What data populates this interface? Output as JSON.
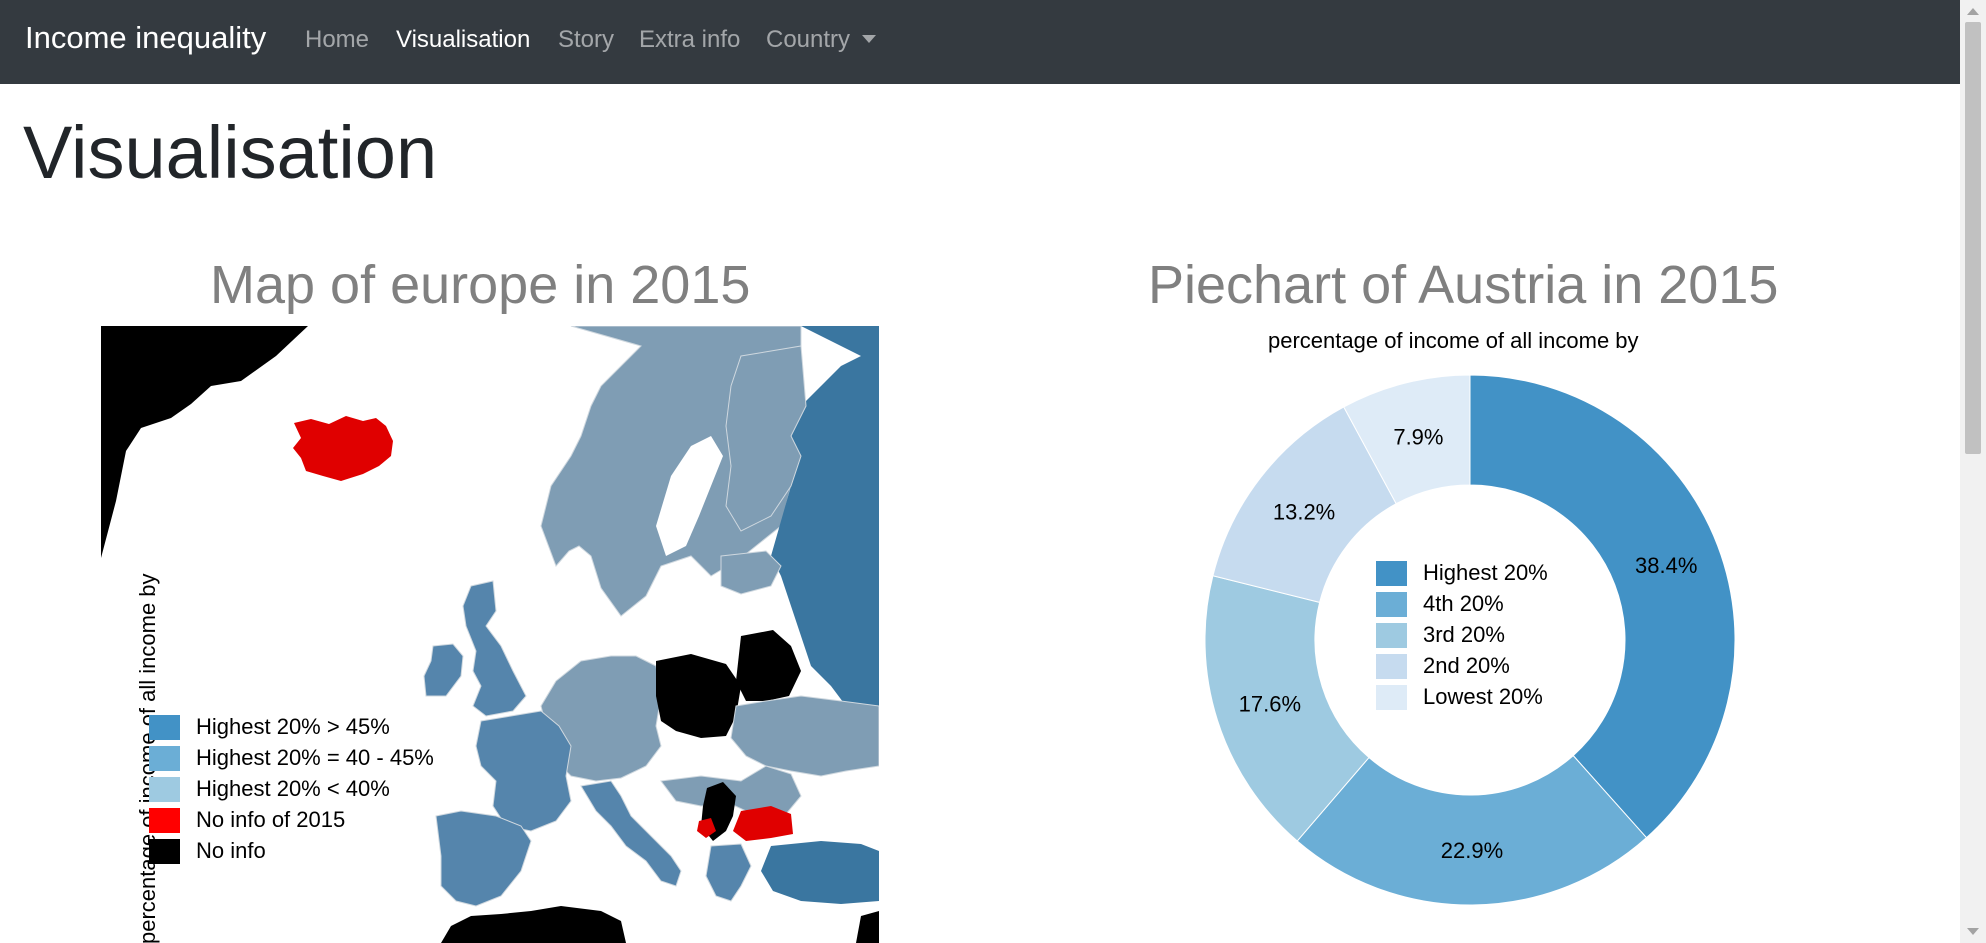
{
  "navbar": {
    "brand": "Income inequality",
    "links": [
      {
        "label": "Home",
        "active": false
      },
      {
        "label": "Visualisation",
        "active": true
      },
      {
        "label": "Story",
        "active": false
      },
      {
        "label": "Extra info",
        "active": false
      },
      {
        "label": "Country",
        "active": false,
        "dropdown": true
      }
    ]
  },
  "page_title": "Visualisation",
  "map": {
    "title": "Map of europe in 2015",
    "y_axis_label": "percentage of income of all income by",
    "legend": [
      {
        "label": "Highest 20% > 45%",
        "color": "#4292c6"
      },
      {
        "label": "Highest 20% = 40 - 45%",
        "color": "#6baed6"
      },
      {
        "label": "Highest 20% < 40%",
        "color": "#9ecae1"
      },
      {
        "label": "No info of 2015",
        "color": "#ff0000"
      },
      {
        "label": "No info",
        "color": "#000000"
      }
    ],
    "colors": {
      "dark_blue": "#3a76a0",
      "mid_blue": "#5585ac",
      "light_blue": "#7f9db4",
      "no_info_2015": "#e00000",
      "no_info": "#000000"
    }
  },
  "chart_data": {
    "type": "pie",
    "title": "Piechart of Austria in 2015",
    "subtitle": "percentage of income of all income by",
    "categories": [
      "Highest 20%",
      "4th 20%",
      "3rd 20%",
      "2nd 20%",
      "Lowest 20%"
    ],
    "values": [
      38.4,
      22.9,
      17.6,
      13.2,
      7.9
    ],
    "labels": [
      "38.4%",
      "22.9%",
      "17.6%",
      "13.2%",
      "7.9%"
    ],
    "colors": [
      "#4292c6",
      "#6baed6",
      "#9ecae1",
      "#c6dbef",
      "#deebf7"
    ],
    "donut": true,
    "legend_placement": "center"
  },
  "scrollbar": {
    "icon_up": "scroll-up-arrow-icon",
    "icon_down": "scroll-down-arrow-icon"
  }
}
